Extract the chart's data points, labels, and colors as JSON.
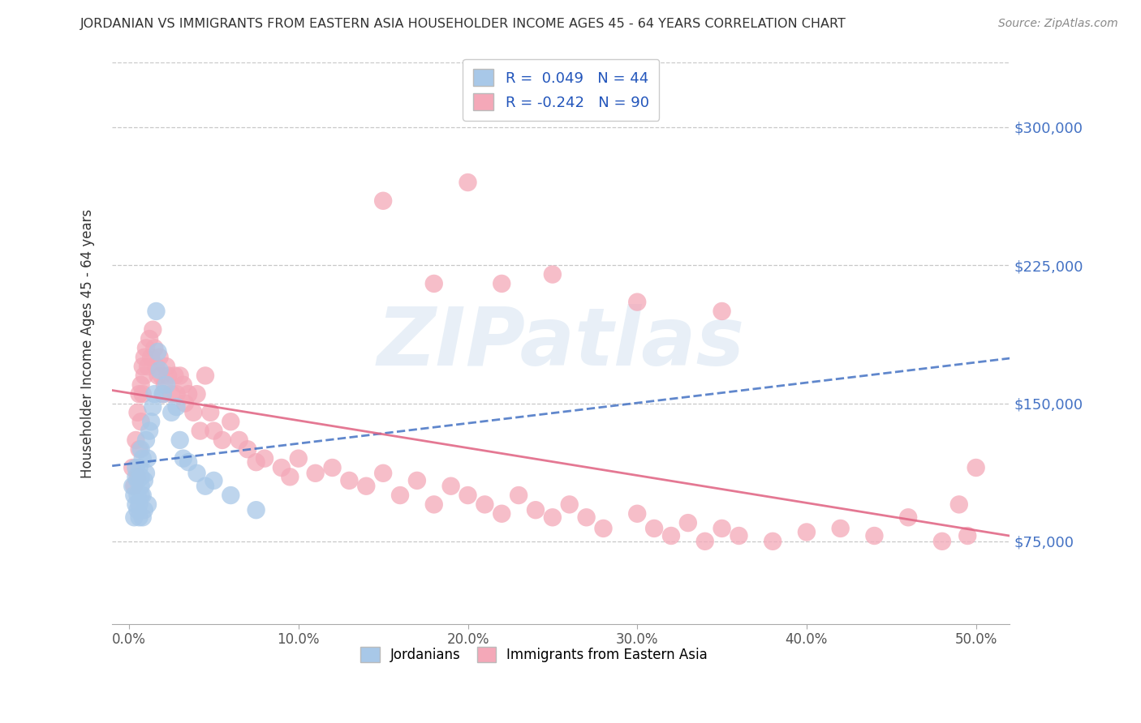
{
  "title": "JORDANIAN VS IMMIGRANTS FROM EASTERN ASIA HOUSEHOLDER INCOME AGES 45 - 64 YEARS CORRELATION CHART",
  "source": "Source: ZipAtlas.com",
  "ylabel": "Householder Income Ages 45 - 64 years",
  "ytick_labels": [
    "$75,000",
    "$150,000",
    "$225,000",
    "$300,000"
  ],
  "ytick_vals": [
    75000,
    150000,
    225000,
    300000
  ],
  "xtick_labels": [
    "0.0%",
    "10.0%",
    "20.0%",
    "30.0%",
    "40.0%",
    "50.0%"
  ],
  "xtick_vals": [
    0.0,
    0.1,
    0.2,
    0.3,
    0.4,
    0.5
  ],
  "legend1_text": "R =  0.049   N = 44",
  "legend2_text": "R = -0.242   N = 90",
  "legend_footer1": "Jordanians",
  "legend_footer2": "Immigrants from Eastern Asia",
  "blue_color": "#a8c8e8",
  "pink_color": "#f4a8b8",
  "blue_line_color": "#4472c4",
  "pink_line_color": "#e06080",
  "xlim": [
    -0.01,
    0.52
  ],
  "ylim": [
    30000,
    335000
  ],
  "bg_color": "#ffffff",
  "grid_color": "#c8c8c8",
  "watermark": "ZIPatlas",
  "blue_x": [
    0.002,
    0.003,
    0.003,
    0.004,
    0.004,
    0.004,
    0.005,
    0.005,
    0.005,
    0.006,
    0.006,
    0.006,
    0.007,
    0.007,
    0.007,
    0.007,
    0.008,
    0.008,
    0.008,
    0.009,
    0.009,
    0.01,
    0.01,
    0.011,
    0.011,
    0.012,
    0.013,
    0.014,
    0.015,
    0.016,
    0.017,
    0.018,
    0.02,
    0.022,
    0.025,
    0.028,
    0.03,
    0.032,
    0.035,
    0.04,
    0.045,
    0.05,
    0.06,
    0.075
  ],
  "blue_y": [
    105000,
    88000,
    100000,
    95000,
    110000,
    115000,
    92000,
    100000,
    108000,
    88000,
    95000,
    115000,
    100000,
    110000,
    125000,
    105000,
    88000,
    100000,
    120000,
    92000,
    108000,
    130000,
    112000,
    120000,
    95000,
    135000,
    140000,
    148000,
    155000,
    200000,
    178000,
    168000,
    155000,
    160000,
    145000,
    148000,
    130000,
    120000,
    118000,
    112000,
    105000,
    108000,
    100000,
    92000
  ],
  "pink_x": [
    0.002,
    0.003,
    0.004,
    0.005,
    0.005,
    0.006,
    0.006,
    0.007,
    0.007,
    0.008,
    0.008,
    0.009,
    0.009,
    0.01,
    0.011,
    0.012,
    0.013,
    0.014,
    0.015,
    0.016,
    0.017,
    0.018,
    0.019,
    0.02,
    0.021,
    0.022,
    0.023,
    0.025,
    0.027,
    0.028,
    0.03,
    0.032,
    0.033,
    0.035,
    0.038,
    0.04,
    0.042,
    0.045,
    0.048,
    0.05,
    0.055,
    0.06,
    0.065,
    0.07,
    0.075,
    0.08,
    0.09,
    0.095,
    0.1,
    0.11,
    0.12,
    0.13,
    0.14,
    0.15,
    0.16,
    0.17,
    0.18,
    0.19,
    0.2,
    0.21,
    0.22,
    0.23,
    0.24,
    0.25,
    0.26,
    0.27,
    0.28,
    0.3,
    0.31,
    0.32,
    0.33,
    0.34,
    0.35,
    0.36,
    0.38,
    0.4,
    0.42,
    0.44,
    0.46,
    0.48,
    0.49,
    0.495,
    0.5,
    0.2,
    0.15,
    0.25,
    0.18,
    0.22,
    0.3,
    0.35
  ],
  "pink_y": [
    115000,
    105000,
    130000,
    145000,
    110000,
    155000,
    125000,
    160000,
    140000,
    170000,
    155000,
    165000,
    175000,
    180000,
    170000,
    185000,
    175000,
    190000,
    180000,
    170000,
    165000,
    175000,
    165000,
    155000,
    160000,
    170000,
    165000,
    155000,
    165000,
    155000,
    165000,
    160000,
    150000,
    155000,
    145000,
    155000,
    135000,
    165000,
    145000,
    135000,
    130000,
    140000,
    130000,
    125000,
    118000,
    120000,
    115000,
    110000,
    120000,
    112000,
    115000,
    108000,
    105000,
    112000,
    100000,
    108000,
    95000,
    105000,
    100000,
    95000,
    90000,
    100000,
    92000,
    88000,
    95000,
    88000,
    82000,
    90000,
    82000,
    78000,
    85000,
    75000,
    82000,
    78000,
    75000,
    80000,
    82000,
    78000,
    88000,
    75000,
    95000,
    78000,
    115000,
    270000,
    260000,
    220000,
    215000,
    215000,
    205000,
    200000
  ]
}
